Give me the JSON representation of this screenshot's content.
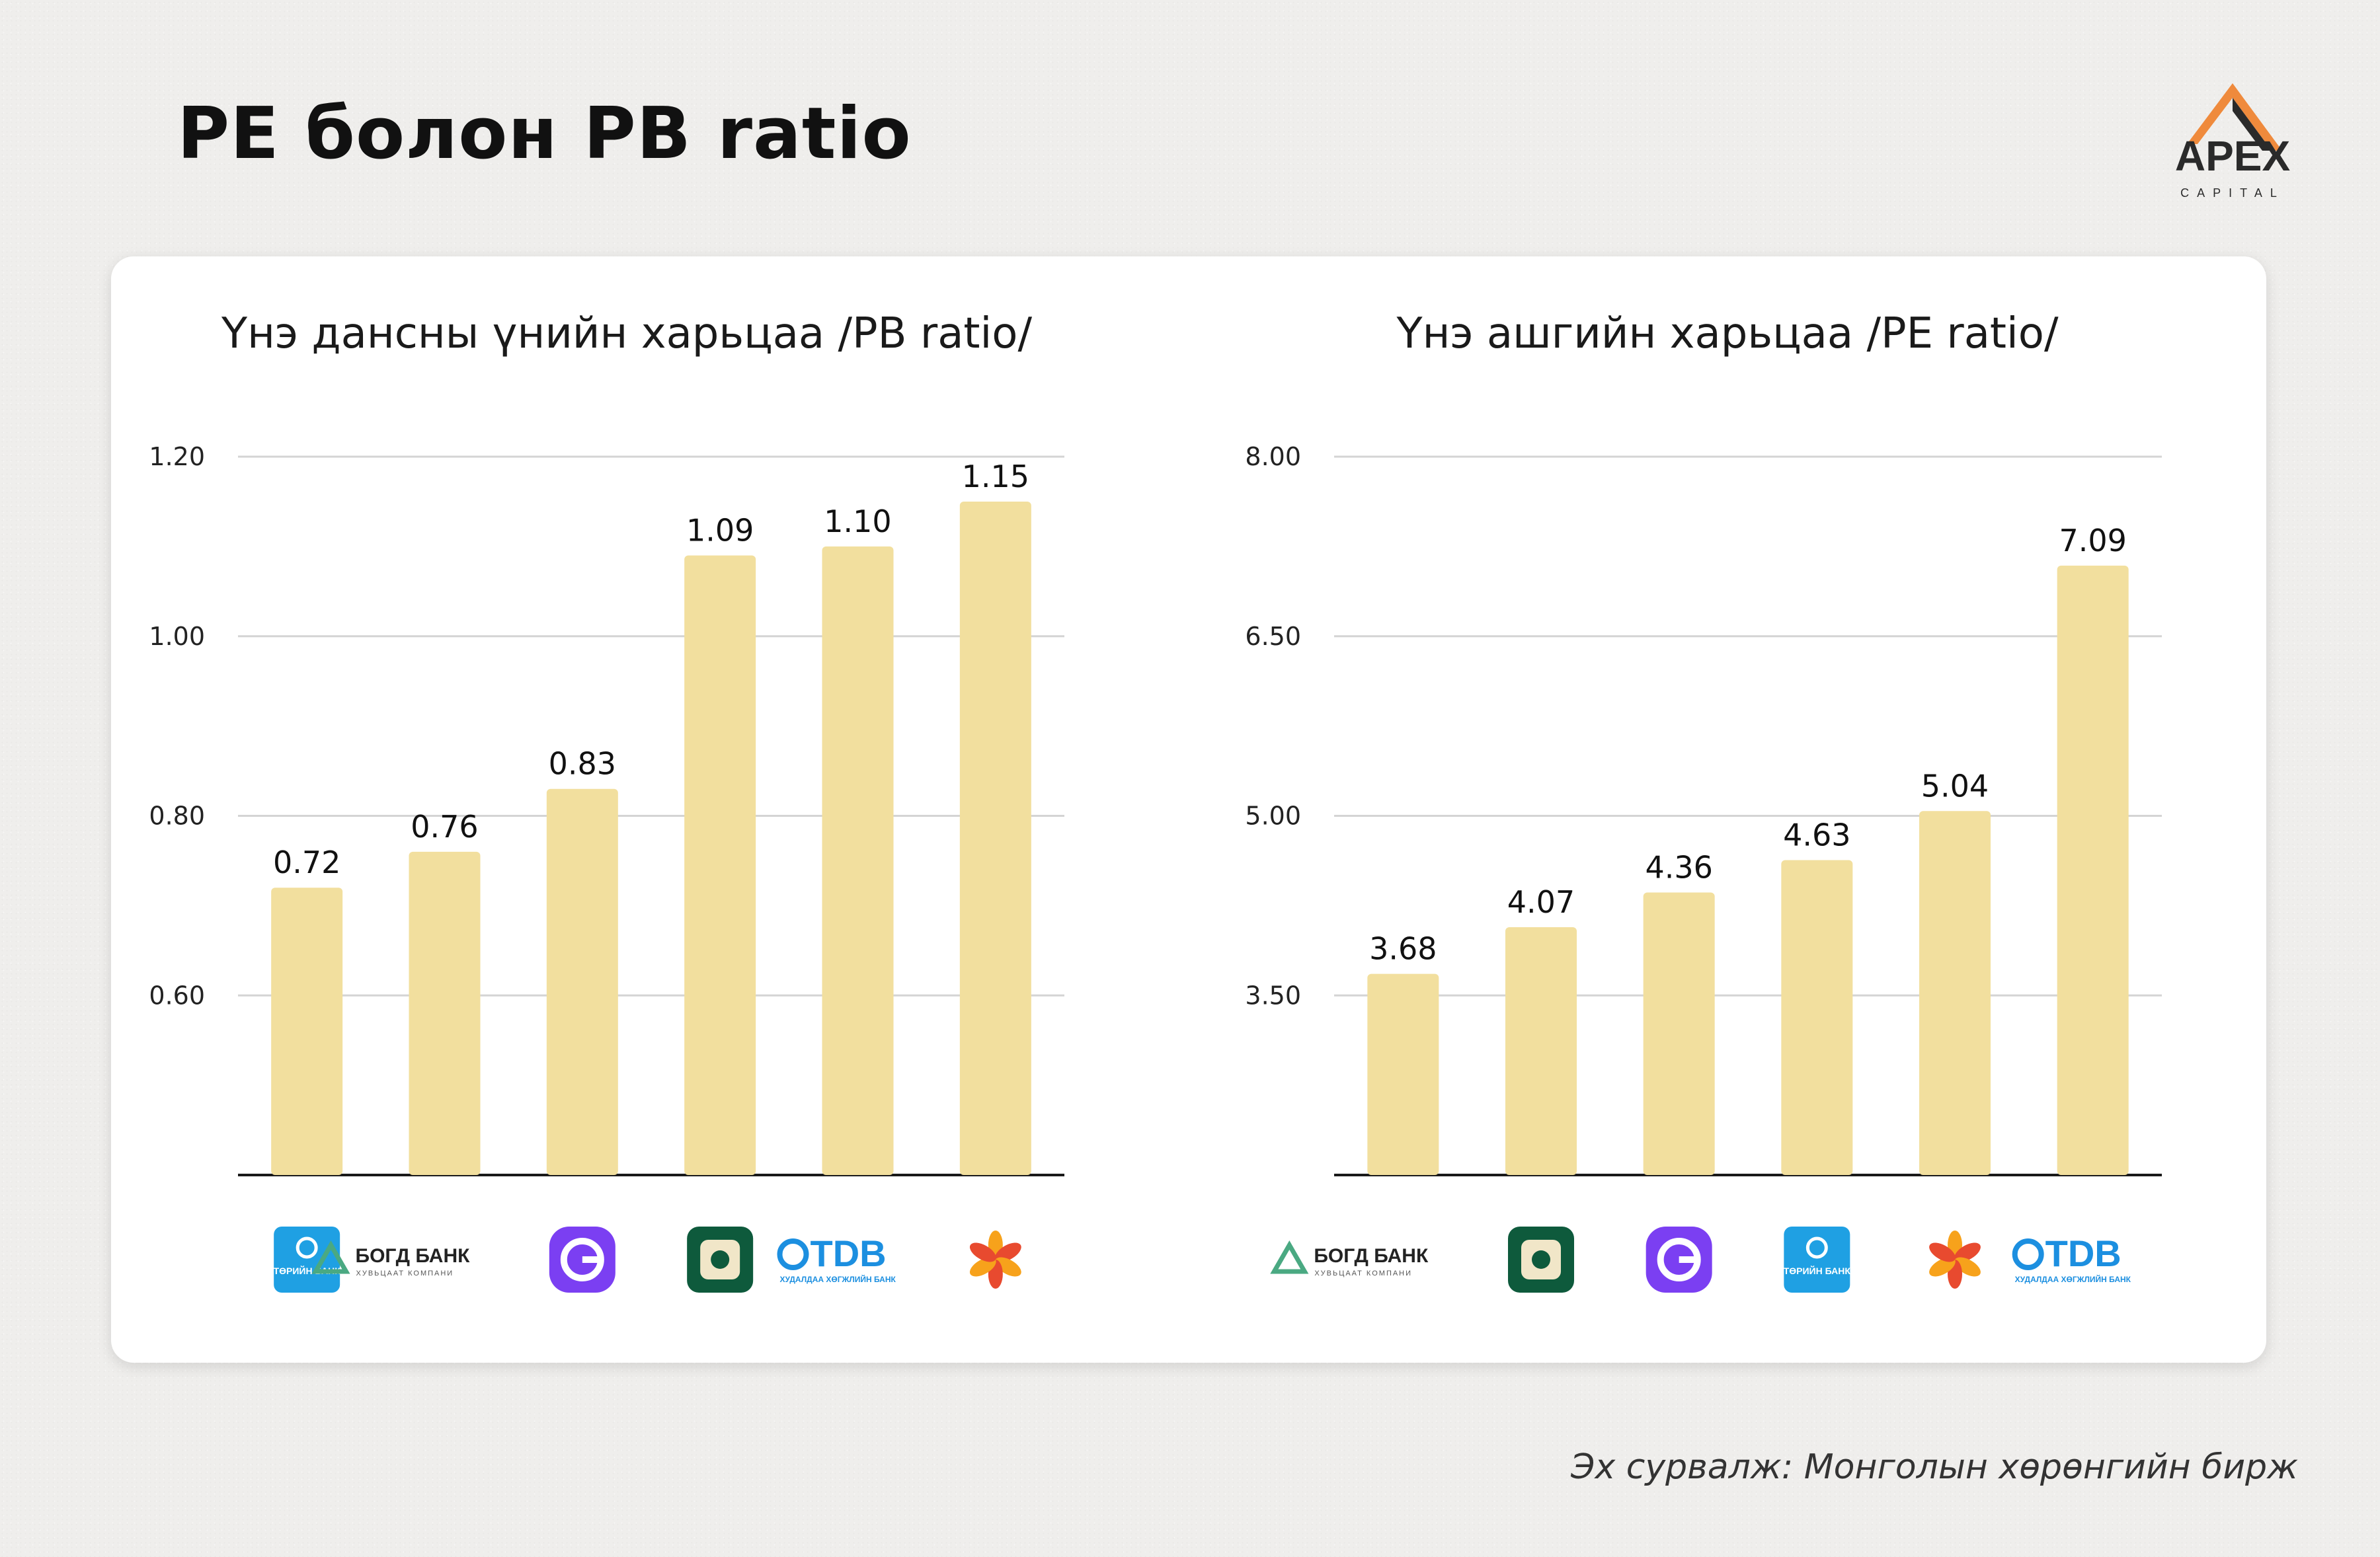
{
  "page": {
    "title": "PE болон PB ratio",
    "source": "Эх сурвалж: Монголын хөрөнгийн бирж"
  },
  "brand": {
    "logo_text": "APEX",
    "logo_subtext": "CAPITAL",
    "icon": "apex-capital-logo"
  },
  "colors": {
    "bar": "#f2df9e",
    "gridline": "#d4d4d4",
    "axis": "#1a1a1a",
    "card": "#ffffff",
    "background": "#efeeec"
  },
  "logos": {
    "torin": {
      "text": "ТӨРИЙН БАНК",
      "color": "#1fa0e3",
      "icon": "torin-bank-logo"
    },
    "bogd": {
      "text": "БОГД БАНК",
      "subtext": "ХУВЬЦААТ КОМПАНИ",
      "color": "#4aa982",
      "icon": "bogd-bank-logo"
    },
    "golomt": {
      "color": "#7b3ff2",
      "icon": "golomt-bank-logo"
    },
    "khan": {
      "color": "#0e5a3c",
      "icon": "khan-bank-logo"
    },
    "tdb": {
      "text": "TDB",
      "subtext": "ХУДАЛДАА ХӨГЖЛИЙН БАНК",
      "color": "#1c8fe0",
      "icon": "tdb-logo"
    },
    "xac": {
      "color": "#f06a2a",
      "icon": "xac-bank-logo"
    }
  },
  "chart_data": [
    {
      "type": "bar",
      "title": "Үнэ дансны үнийн харьцаа /PB ratio/",
      "categories": [
        "torin",
        "bogd",
        "golomt",
        "khan",
        "tdb",
        "xac"
      ],
      "values": [
        0.72,
        0.76,
        0.83,
        1.09,
        1.1,
        1.15
      ],
      "value_labels": [
        "0.72",
        "0.76",
        "0.83",
        "1.09",
        "1.10",
        "1.15"
      ],
      "yticks": [
        0.6,
        0.8,
        1.0,
        1.2
      ],
      "ytick_labels": [
        "0.60",
        "0.80",
        "1.00",
        "1.20"
      ],
      "ylim": [
        0.4,
        1.2
      ],
      "grid": true,
      "legend": "none"
    },
    {
      "type": "bar",
      "title": "Үнэ ашгийн харьцаа /PE ratio/",
      "categories": [
        "bogd",
        "khan",
        "golomt",
        "torin",
        "xac",
        "tdb"
      ],
      "values": [
        3.68,
        4.07,
        4.36,
        4.63,
        5.04,
        7.09
      ],
      "value_labels": [
        "3.68",
        "4.07",
        "4.36",
        "4.63",
        "5.04",
        "7.09"
      ],
      "yticks": [
        3.5,
        5.0,
        6.5,
        8.0
      ],
      "ytick_labels": [
        "3.50",
        "5.00",
        "6.50",
        "8.00"
      ],
      "ylim": [
        2.0,
        8.0
      ],
      "grid": true,
      "legend": "none"
    }
  ]
}
